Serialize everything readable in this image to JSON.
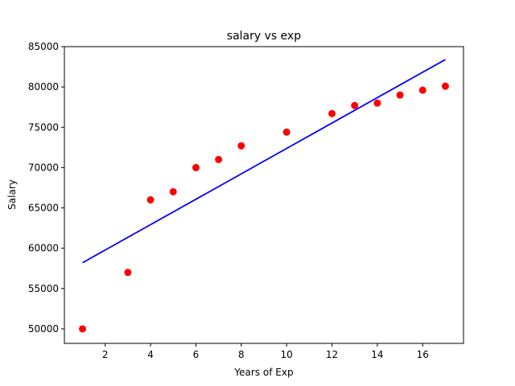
{
  "chart_data": {
    "type": "scatter",
    "title": "salary vs exp",
    "xlabel": "Years of Exp",
    "ylabel": "Salary",
    "xlim": [
      0.2,
      17.8
    ],
    "ylim": [
      48200,
      85000
    ],
    "xticks": [
      2,
      4,
      6,
      8,
      10,
      12,
      14,
      16
    ],
    "yticks": [
      50000,
      55000,
      60000,
      65000,
      70000,
      75000,
      80000,
      85000
    ],
    "grid": false,
    "points": {
      "color": "#ff0000",
      "x": [
        1,
        3,
        4,
        5,
        6,
        7,
        8,
        10,
        12,
        13,
        14,
        15,
        16,
        17
      ],
      "y": [
        50000,
        57000,
        66000,
        67000,
        70000,
        71000,
        72700,
        74400,
        76700,
        77700,
        78000,
        79000,
        79600,
        80100
      ]
    },
    "fit_line": {
      "color": "#0000ff",
      "x": [
        1,
        17
      ],
      "y": [
        58200,
        83400
      ]
    }
  }
}
